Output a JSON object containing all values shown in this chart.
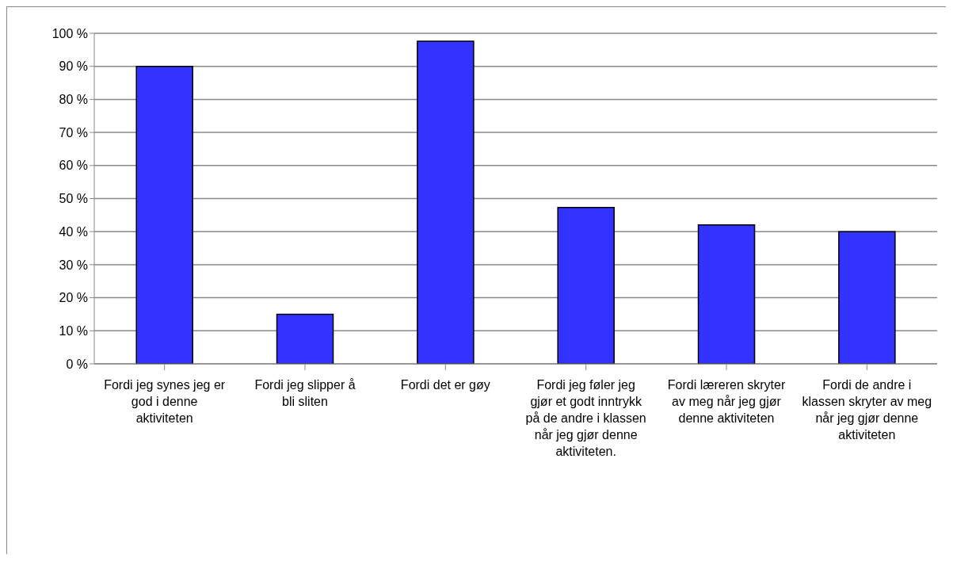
{
  "chart_data": {
    "type": "bar",
    "categories": [
      "Fordi jeg synes jeg er god i denne aktiviteten",
      "Fordi jeg slipper å bli sliten",
      "Fordi det er gøy",
      "Fordi jeg føler jeg gjør et godt inntrykk på de andre i klassen når jeg gjør denne aktiviteten.",
      "Fordi læreren skryter av meg når jeg gjør denne aktiviteten",
      "Fordi de andre i klassen skryter av meg når jeg gjør denne aktiviteten"
    ],
    "values": [
      90,
      15,
      97.6,
      47.3,
      42,
      40
    ],
    "color": "#3333ff",
    "ylim": [
      0,
      100
    ],
    "yticks": [
      {
        "value": 0,
        "label": "0 %"
      },
      {
        "value": 10,
        "label": "10 %"
      },
      {
        "value": 20,
        "label": "20 %"
      },
      {
        "value": 30,
        "label": "30 %"
      },
      {
        "value": 40,
        "label": "40 %"
      },
      {
        "value": 50,
        "label": "50 %"
      },
      {
        "value": 60,
        "label": "60 %"
      },
      {
        "value": 70,
        "label": "70 %"
      },
      {
        "value": 80,
        "label": "80 %"
      },
      {
        "value": 90,
        "label": "90 %"
      },
      {
        "value": 100,
        "label": "100 %"
      }
    ],
    "grid": "y",
    "legend": false
  }
}
